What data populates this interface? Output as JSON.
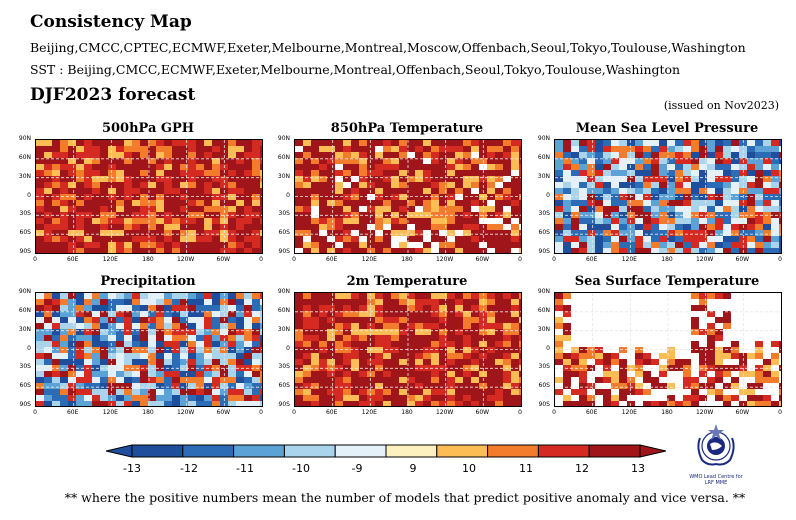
{
  "header": {
    "title": "Consistency Map",
    "models": "Beijing,CMCC,CPTEC,ECMWF,Exeter,Melbourne,Montreal,Moscow,Offenbach,Seoul,Tokyo,Toulouse,Washington",
    "sst_models": "SST : Beijing,CMCC,ECMWF,Exeter,Melbourne,Montreal,Offenbach,Seoul,Tokyo,Toulouse,Washington",
    "forecast": "DJF2023 forecast",
    "issued": "(issued on Nov2023)"
  },
  "panels": [
    {
      "title": "500hPa GPH"
    },
    {
      "title": "850hPa Temperature"
    },
    {
      "title": "Mean Sea Level Pressure"
    },
    {
      "title": "Precipitation"
    },
    {
      "title": "2m Temperature"
    },
    {
      "title": "Sea Surface Temperature"
    }
  ],
  "axes": {
    "lat_ticks": [
      "90N",
      "60N",
      "30N",
      "0",
      "30S",
      "60S",
      "90S"
    ],
    "lon_ticks": [
      "0",
      "60E",
      "120E",
      "180",
      "120W",
      "60W",
      "0"
    ]
  },
  "colorbar": {
    "labels": [
      "-13",
      "-12",
      "-11",
      "-10",
      "-9",
      "9",
      "10",
      "11",
      "12",
      "13"
    ],
    "colors": [
      "#1f4e9c",
      "#2c6bb5",
      "#5ba3d6",
      "#a9d4ec",
      "#e4f1f8",
      "#ffffff",
      "#fdf1c0",
      "#fdbd55",
      "#f27c2c",
      "#d42a22",
      "#a01519"
    ]
  },
  "logo": {
    "line1": "WMO Lead Centre for",
    "line2": "LRF MME"
  },
  "footnote": "** where the positive numbers mean the number of models that predict positive anomaly and vice versa. **"
}
